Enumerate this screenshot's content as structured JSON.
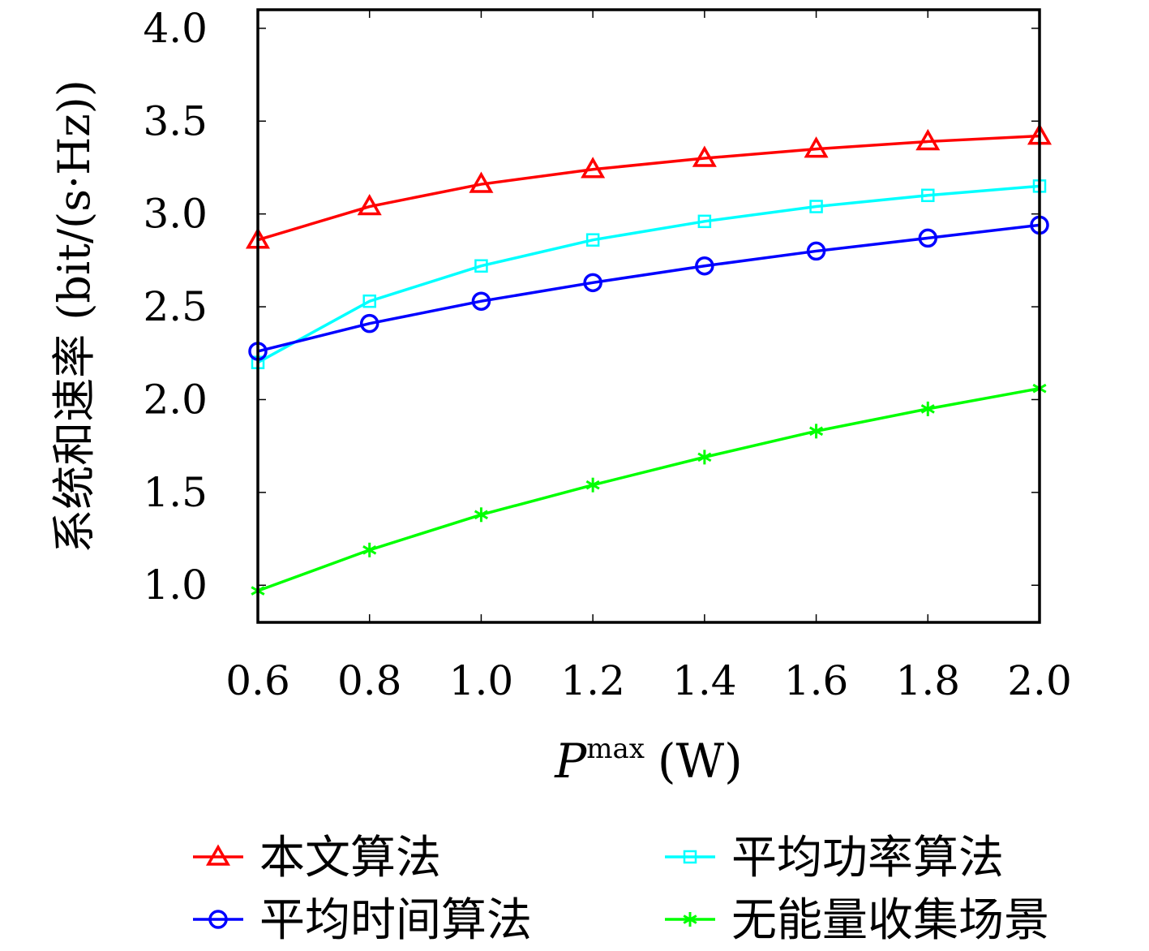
{
  "chart_data": {
    "type": "line",
    "x": [
      0.6,
      0.8,
      1.0,
      1.2,
      1.4,
      1.6,
      1.8,
      2.0
    ],
    "x_ticks": [
      "0.6",
      "0.8",
      "1.0",
      "1.2",
      "1.4",
      "1.6",
      "1.8",
      "2.0"
    ],
    "y_ticks": [
      "1.0",
      "1.5",
      "2.0",
      "2.5",
      "3.0",
      "3.5",
      "4.0"
    ],
    "xlim": [
      0.6,
      2.0
    ],
    "ylim": [
      0.8,
      4.1
    ],
    "xlabel_main": "P",
    "xlabel_sub": "max",
    "xlabel_unit": "(W)",
    "ylabel": "系统和速率 (bit/(s·Hz))",
    "grid": false,
    "legend_placement": "bottom",
    "series": [
      {
        "name": "本文算法",
        "color": "#ff0000",
        "marker": "triangle",
        "values": [
          2.86,
          3.04,
          3.16,
          3.24,
          3.3,
          3.35,
          3.39,
          3.42
        ]
      },
      {
        "name": "平均功率算法",
        "color": "#00ffff",
        "marker": "square",
        "values": [
          2.2,
          2.53,
          2.72,
          2.86,
          2.96,
          3.04,
          3.1,
          3.15
        ]
      },
      {
        "name": "平均时间算法",
        "color": "#0000ff",
        "marker": "circle",
        "values": [
          2.26,
          2.41,
          2.53,
          2.63,
          2.72,
          2.8,
          2.87,
          2.94
        ]
      },
      {
        "name": "无能量收集场景",
        "color": "#00ff00",
        "marker": "asterisk",
        "values": [
          0.97,
          1.19,
          1.38,
          1.54,
          1.69,
          1.83,
          1.95,
          2.06
        ]
      }
    ]
  }
}
